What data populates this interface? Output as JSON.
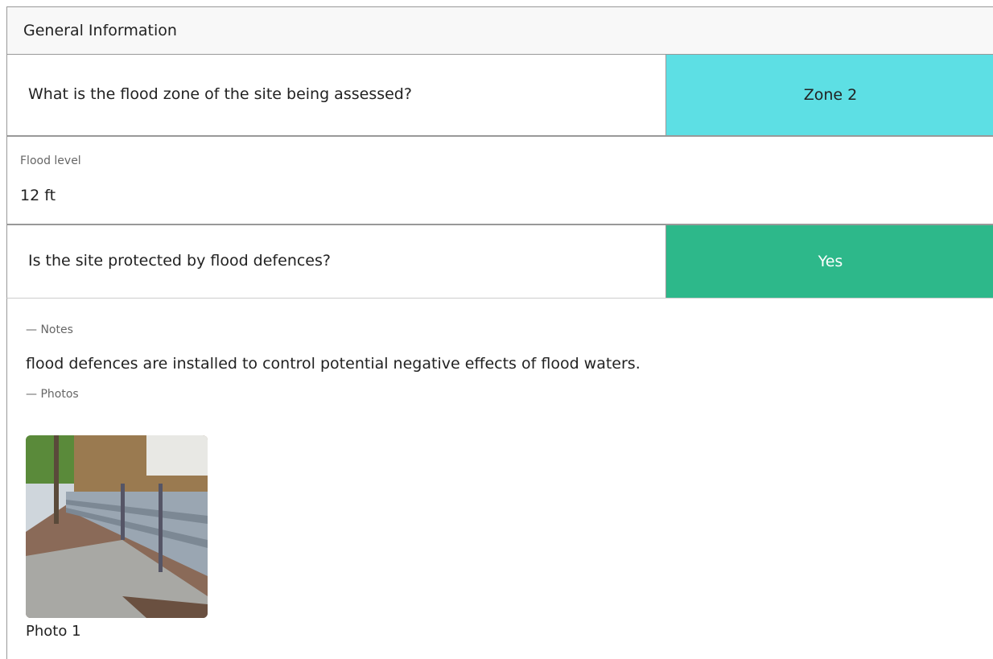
{
  "header": {
    "title": "General Information"
  },
  "questions": [
    {
      "question": "What is the flood zone of the site being assessed?",
      "answer": "Zone 2"
    },
    {
      "question": "Is the site protected by flood defences?",
      "answer": "Yes"
    }
  ],
  "flood_level": {
    "label": "Flood level",
    "value": "12 ft"
  },
  "notes": {
    "label": "— Notes",
    "text": "flood defences are installed to control potential negative effects of flood waters."
  },
  "photos": {
    "label": "— Photos",
    "items": [
      {
        "caption": "Photo 1"
      }
    ]
  }
}
